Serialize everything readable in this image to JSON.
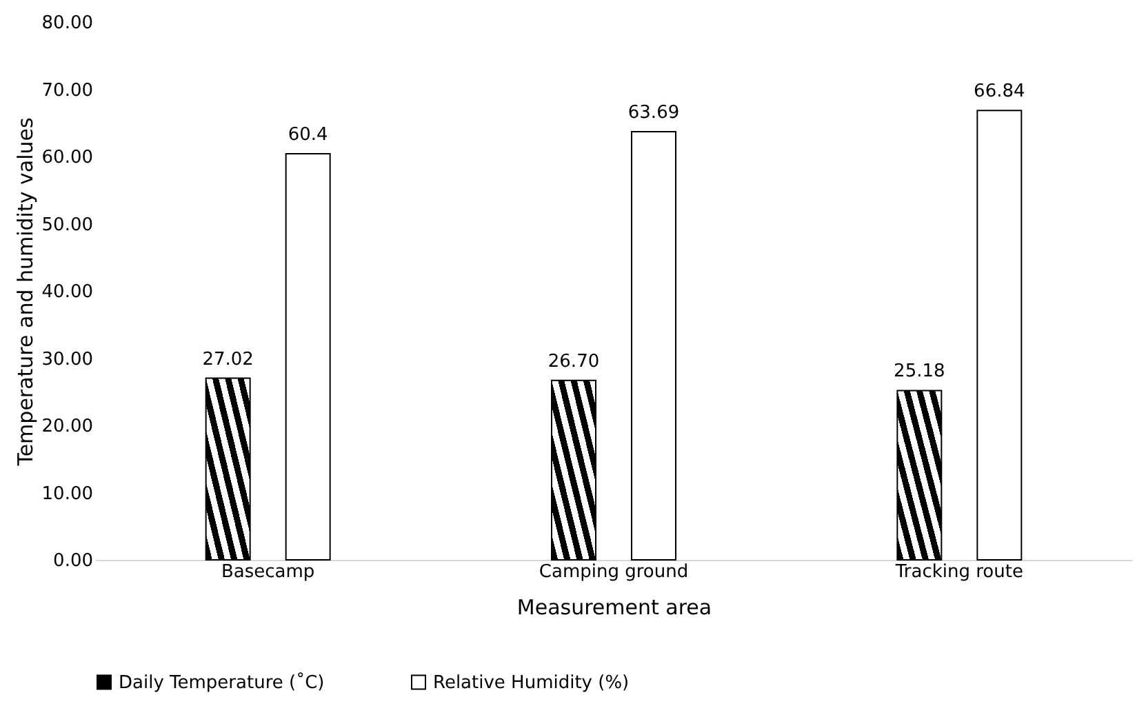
{
  "chart_data": {
    "type": "bar",
    "xlabel": "Measurement area",
    "ylabel": "Temperature and humidity values",
    "categories": [
      "Basecamp",
      "Camping ground",
      "Tracking route"
    ],
    "series": [
      {
        "name": "Daily Temperature (˚C)",
        "color": "#000000",
        "values": [
          27.02,
          26.7,
          25.18
        ],
        "value_labels": [
          "27.02",
          "26.70",
          "25.18"
        ]
      },
      {
        "name": "Relative Humidity (%)",
        "color": "#ffffff",
        "values": [
          60.4,
          63.69,
          66.84
        ],
        "value_labels": [
          "60.4",
          "63.69",
          "66.84"
        ]
      }
    ],
    "ylim": [
      0,
      80
    ],
    "yticks": [
      {
        "value": 0,
        "label": "0.00"
      },
      {
        "value": 10,
        "label": "10.00"
      },
      {
        "value": 20,
        "label": "20.00"
      },
      {
        "value": 30,
        "label": "30.00"
      },
      {
        "value": 40,
        "label": "40.00"
      },
      {
        "value": 50,
        "label": "50.00"
      },
      {
        "value": 60,
        "label": "60.00"
      },
      {
        "value": 70,
        "label": "70.00"
      },
      {
        "value": 80,
        "label": "80.00"
      }
    ],
    "grid": false,
    "legend": "bottom"
  }
}
